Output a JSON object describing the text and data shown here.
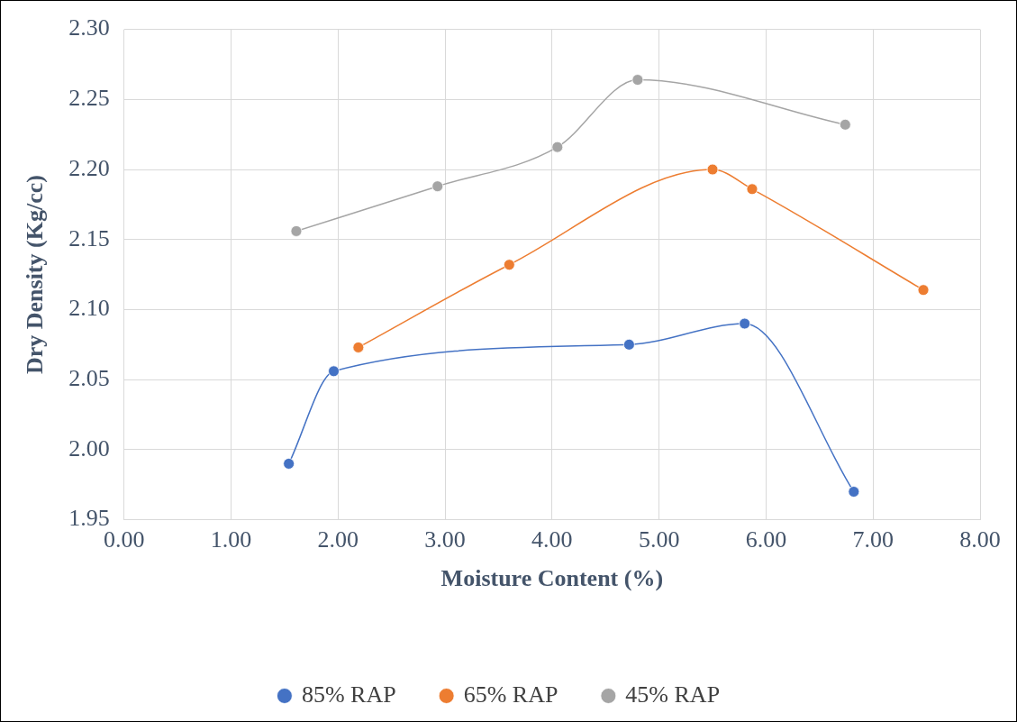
{
  "chart_data": {
    "type": "line",
    "xlabel": "Moisture Content (%)",
    "ylabel": "Dry Density (Kg/cc)",
    "xlim": [
      0,
      8
    ],
    "xticks": [
      {
        "value": 0,
        "label": "0.00"
      },
      {
        "value": 1,
        "label": "1.00"
      },
      {
        "value": 2,
        "label": "2.00"
      },
      {
        "value": 3,
        "label": "3.00"
      },
      {
        "value": 4,
        "label": "4.00"
      },
      {
        "value": 5,
        "label": "5.00"
      },
      {
        "value": 6,
        "label": "6.00"
      },
      {
        "value": 7,
        "label": "7.00"
      },
      {
        "value": 8,
        "label": "8.00"
      }
    ],
    "ylim": [
      1.95,
      2.3
    ],
    "yticks": [
      {
        "value": 1.95,
        "label": "1.95"
      },
      {
        "value": 2,
        "label": "2.00"
      },
      {
        "value": 2.05,
        "label": "2.05"
      },
      {
        "value": 2.1,
        "label": "2.10"
      },
      {
        "value": 2.15,
        "label": "2.15"
      },
      {
        "value": 2.2,
        "label": "2.20"
      },
      {
        "value": 2.25,
        "label": "2.25"
      },
      {
        "value": 2.3,
        "label": "2.30"
      }
    ],
    "grid": true,
    "legend": "bottom",
    "marker": "circle",
    "line_style": "solid",
    "series": [
      {
        "name": "85% RAP",
        "color": "#4472c4",
        "x": [
          1.54,
          1.96,
          4.72,
          5.8,
          6.82
        ],
        "values": [
          1.99,
          2.056,
          2.075,
          2.09,
          1.97
        ]
      },
      {
        "name": "65% RAP",
        "color": "#ed7d31",
        "x": [
          2.19,
          3.6,
          5.5,
          5.87,
          7.47
        ],
        "values": [
          2.073,
          2.132,
          2.2,
          2.186,
          2.114
        ]
      },
      {
        "name": "45% RAP",
        "color": "#a5a5a5",
        "x": [
          1.61,
          2.93,
          4.05,
          4.8,
          6.74
        ],
        "values": [
          2.156,
          2.188,
          2.216,
          2.264,
          2.232
        ]
      }
    ]
  }
}
